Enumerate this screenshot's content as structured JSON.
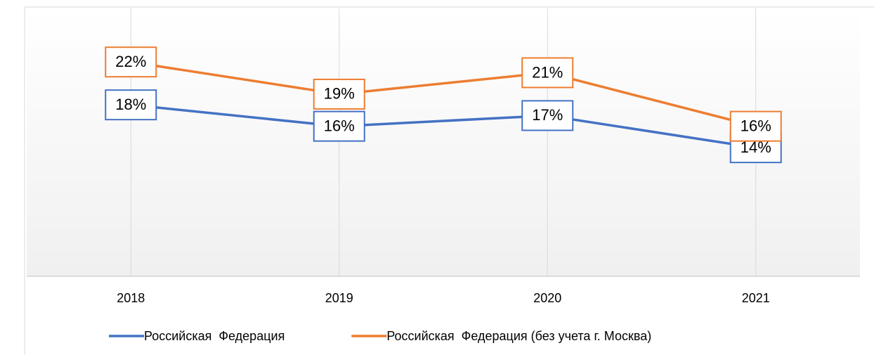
{
  "chart_data": {
    "type": "line",
    "categories": [
      "2018",
      "2019",
      "2020",
      "2021"
    ],
    "series": [
      {
        "name": "Российская  Федерация",
        "color": "#4472c4",
        "values": [
          18,
          16,
          17,
          14
        ],
        "value_labels": [
          "18%",
          "16%",
          "17%",
          "14%"
        ]
      },
      {
        "name": "Российская  Федерация (без учета г. Москва)",
        "color": "#ed7d31",
        "values": [
          22,
          19,
          21,
          16
        ],
        "value_labels": [
          "22%",
          "19%",
          "21%",
          "16%"
        ]
      }
    ],
    "ylim": [
      2,
      27
    ]
  }
}
